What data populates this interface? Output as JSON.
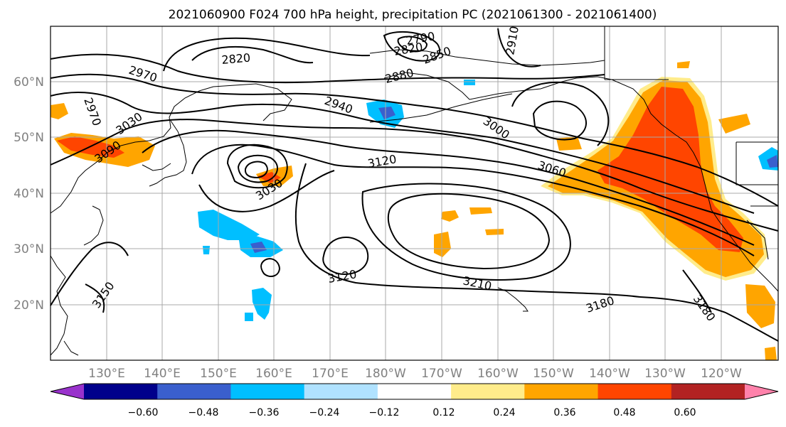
{
  "title": "2021060900 F024 700 hPa height, precipitation PC (2021061300 - 2021061400)",
  "lat_labels": [
    "60°N",
    "50°N",
    "40°N",
    "30°N",
    "20°N"
  ],
  "lon_labels": [
    "130°E",
    "140°E",
    "150°E",
    "160°E",
    "170°E",
    "180°W",
    "170°W",
    "160°W",
    "150°W",
    "140°W",
    "130°W",
    "120°W"
  ],
  "contour_labels": [
    "2970",
    "2970",
    "3030",
    "3090",
    "2820",
    "2790",
    "2820",
    "2850",
    "2880",
    "2910",
    "2940",
    "3000",
    "3120",
    "3060",
    "3030",
    "3120",
    "3210",
    "3180",
    "3180",
    "3150"
  ],
  "colorbar": {
    "tick_labels": [
      "−0.60",
      "−0.48",
      "−0.36",
      "−0.24",
      "−0.12",
      "0.12",
      "0.24",
      "0.36",
      "0.48",
      "0.60"
    ],
    "colors": [
      "#9932cc",
      "#00008b",
      "#3a5fcd",
      "#00bfff",
      "#b0e2ff",
      "#ffffff",
      "#ffec8b",
      "#ffa500",
      "#ff4500",
      "#b22222",
      "#ff82ab"
    ]
  },
  "fill_colors": {
    "orange": "#ffa500",
    "red_orange": "#ff4500",
    "light_yellow": "#ffec8b",
    "deep_sky_blue": "#00bfff",
    "royal_blue": "#3a5fcd"
  }
}
